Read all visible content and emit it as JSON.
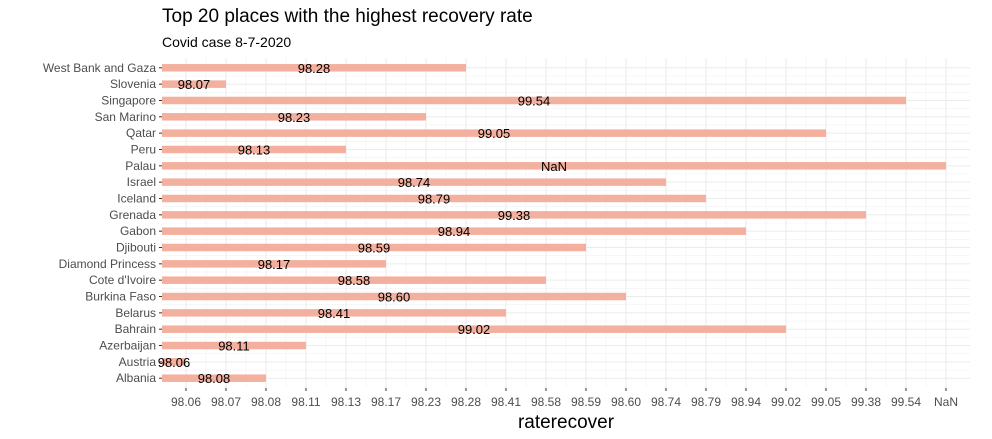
{
  "chart_data": {
    "type": "bar",
    "orientation": "horizontal",
    "title": "Top 20 places with the highest recovery rate",
    "subtitle": "Covid case 8-7-2020",
    "xlabel": "raterecover",
    "ylabel": "",
    "bar_color": "#f4b09e",
    "grid": true,
    "categories": [
      "Albania",
      "Austria",
      "Azerbaijan",
      "Bahrain",
      "Belarus",
      "Burkina Faso",
      "Cote d'Ivoire",
      "Diamond Princess",
      "Djibouti",
      "Gabon",
      "Grenada",
      "Iceland",
      "Israel",
      "Palau",
      "Peru",
      "Qatar",
      "San Marino",
      "Singapore",
      "Slovenia",
      "West Bank and Gaza"
    ],
    "values": [
      "98.08",
      "98.06",
      "98.11",
      "99.02",
      "98.41",
      "98.60",
      "98.58",
      "98.17",
      "98.59",
      "98.94",
      "99.38",
      "98.79",
      "98.74",
      "NaN",
      "98.13",
      "99.05",
      "98.23",
      "99.54",
      "98.07",
      "98.28"
    ],
    "x_ticks": [
      "98.06",
      "98.07",
      "98.08",
      "98.11",
      "98.13",
      "98.17",
      "98.23",
      "98.28",
      "98.41",
      "98.58",
      "98.59",
      "98.60",
      "98.74",
      "98.79",
      "98.94",
      "99.02",
      "99.05",
      "99.38",
      "99.54",
      "NaN"
    ],
    "x_scale": "discrete"
  }
}
